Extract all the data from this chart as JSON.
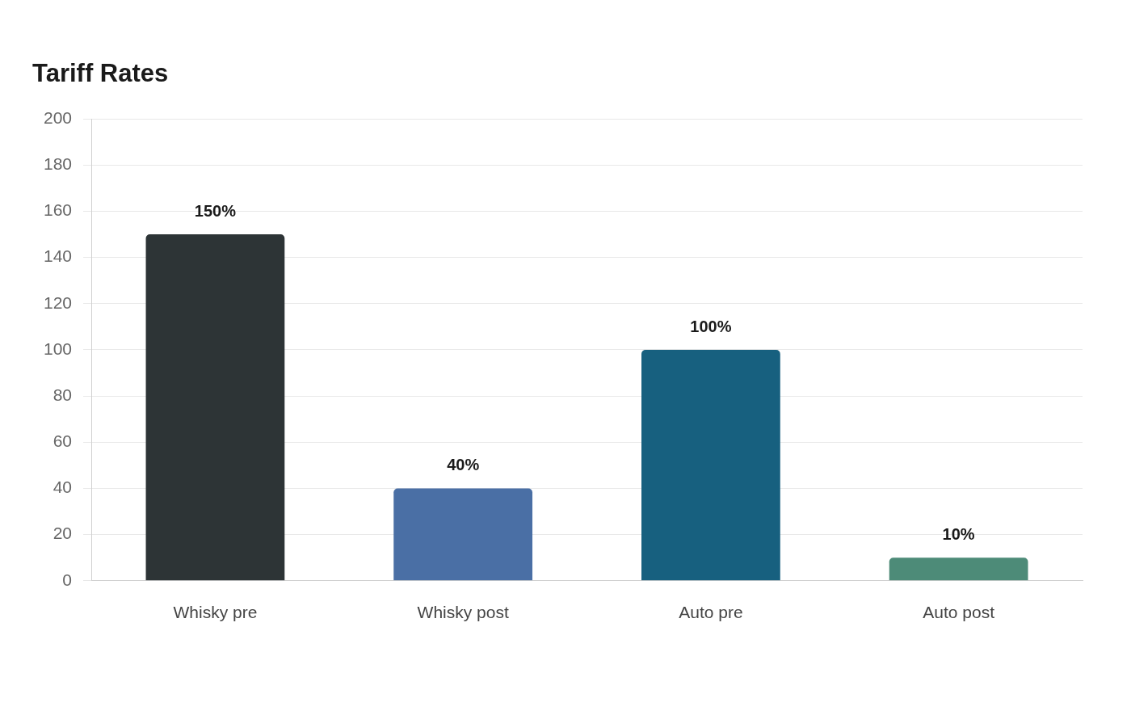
{
  "chart_data": {
    "type": "bar",
    "title": "Tariff Rates",
    "categories": [
      "Whisky pre",
      "Whisky post",
      "Auto pre",
      "Auto post"
    ],
    "values": [
      150,
      40,
      100,
      10
    ],
    "colors": [
      "#2d3436",
      "#4a6fa5",
      "#17607f",
      "#4d8b78"
    ],
    "value_labels": [
      "150%",
      "40%",
      "100%",
      "10%"
    ],
    "ylim": [
      0,
      200
    ],
    "yticks": [
      0,
      20,
      40,
      60,
      80,
      100,
      120,
      140,
      160,
      180,
      200
    ],
    "grid": "y"
  }
}
